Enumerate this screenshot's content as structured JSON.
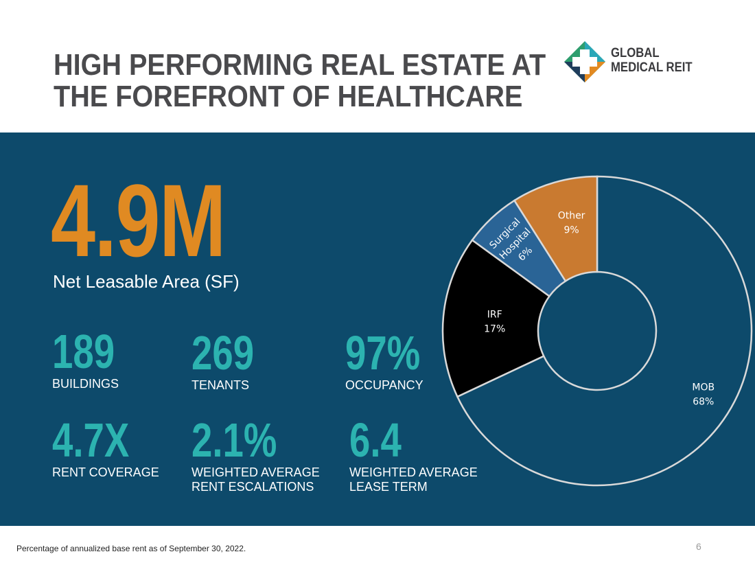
{
  "header": {
    "title_line1": "HIGH PERFORMING REAL ESTATE AT",
    "title_line2": "THE FOREFRONT OF HEALTHCARE"
  },
  "logo": {
    "line1": "GLOBAL",
    "line2": "MEDICAL REIT",
    "icon": "medical-cross-logo-icon",
    "colors": {
      "green": "#2e9e6e",
      "teal": "#2aa7b8",
      "navy": "#1f3d5c",
      "orange": "#e28a22"
    }
  },
  "hero": {
    "value": "4.9M",
    "label": "Net Leasable Area (SF)"
  },
  "stats": [
    {
      "value": "189",
      "label_line1": "BUILDINGS",
      "label_line2": ""
    },
    {
      "value": "269",
      "label_line1": "TENANTS",
      "label_line2": ""
    },
    {
      "value": "97%",
      "label_line1": "OCCUPANCY",
      "label_line2": ""
    },
    {
      "value": "4.7X",
      "label_line1": "RENT COVERAGE",
      "label_line2": ""
    },
    {
      "value": "2.1%",
      "label_line1": "WEIGHTED AVERAGE",
      "label_line2": "RENT ESCALATIONS"
    },
    {
      "value": "6.4",
      "label_line1": "WEIGHTED AVERAGE",
      "label_line2": "LEASE TERM"
    }
  ],
  "chart_data": {
    "type": "pie",
    "variant": "donut",
    "title": "",
    "slices": [
      {
        "name": "MOB",
        "value": 68,
        "label_line1": "MOB",
        "label_line2": "68%",
        "color": "#0d4a6b",
        "text_color": "#ffffff"
      },
      {
        "name": "IRF",
        "value": 17,
        "label_line1": "IRF",
        "label_line2": "17%",
        "color": "#000000",
        "text_color": "#ffffff"
      },
      {
        "name": "Surgical Hospital",
        "value": 6,
        "label_line1": "Surgical",
        "label_line2": "Hospital",
        "label_line3": "6%",
        "color": "#2a6496",
        "text_color": "#ffffff"
      },
      {
        "name": "Other",
        "value": 9,
        "label_line1": "Other",
        "label_line2": "9%",
        "color": "#c97a30",
        "text_color": "#ffffff"
      }
    ],
    "start_angle_deg": 0,
    "direction": "clockwise",
    "legend": "none"
  },
  "footer": {
    "note": "Percentage of annualized base rent as of September 30, 2022.",
    "page_number": "6"
  },
  "colors": {
    "panel": "#0d4a6b",
    "accent_orange": "#e08a22",
    "accent_teal": "#2cb3b0",
    "title_gray": "#4a4a4d"
  }
}
